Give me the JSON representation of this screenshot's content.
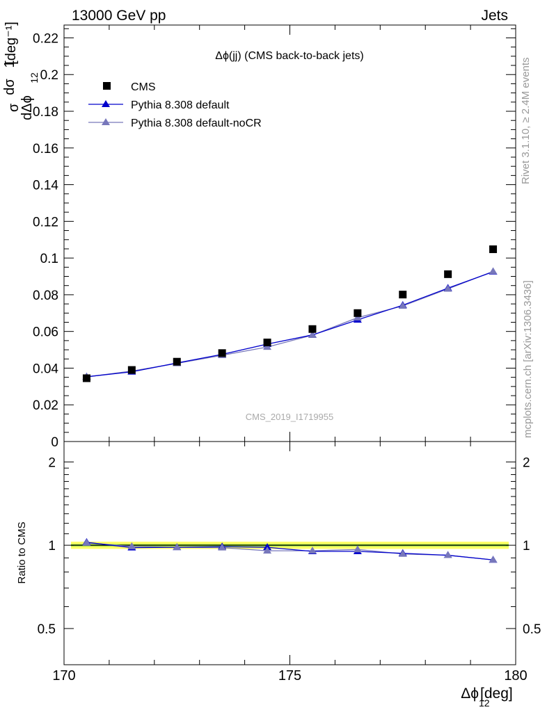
{
  "header": {
    "left": "13000 GeV pp",
    "right": "Jets"
  },
  "side_labels": {
    "rivet": "Rivet 3.1.10, ≥ 2.4M events",
    "mcplots": "mcplots.cern.ch [arXiv:1306.3436]"
  },
  "colors": {
    "cms": "#000000",
    "pythia_default": "#0000cc",
    "pythia_nocr": "#7777bb",
    "band_yellow": "#ffff66",
    "band_green": "#99dd44"
  },
  "chart_data": [
    {
      "type": "scatter",
      "title": "Δϕ(jj) (CMS back-to-back jets)",
      "watermark": "CMS_2019_I1719955",
      "ylabel": "1/σ dσ/dΔϕ₁₂ [deg⁻¹]",
      "xlim": [
        170,
        180
      ],
      "ylim": [
        0,
        0.227
      ],
      "yticks": [
        "0",
        "0.02",
        "0.04",
        "0.06",
        "0.08",
        "0.1",
        "0.12",
        "0.14",
        "0.16",
        "0.18",
        "0.2",
        "0.22"
      ],
      "x": [
        170.5,
        171.5,
        172.5,
        173.5,
        174.5,
        175.5,
        176.5,
        177.5,
        178.5,
        179.5
      ],
      "legend_placement": "top-left",
      "series": [
        {
          "name": "CMS",
          "marker": "square",
          "values": [
            0.0345,
            0.039,
            0.0435,
            0.0482,
            0.054,
            0.0613,
            0.07,
            0.0801,
            0.0912,
            0.1048
          ]
        },
        {
          "name": "Pythia 8.308 default",
          "marker": "triangle",
          "values": [
            0.0353,
            0.038,
            0.0428,
            0.0475,
            0.0531,
            0.0581,
            0.0663,
            0.0743,
            0.0836,
            0.0925
          ]
        },
        {
          "name": "Pythia 8.308 default-noCR",
          "marker": "triangle",
          "values": [
            0.0352,
            0.0384,
            0.0426,
            0.047,
            0.0515,
            0.058,
            0.0675,
            0.0739,
            0.0832,
            0.0927
          ]
        }
      ]
    },
    {
      "type": "line",
      "ylabel": "Ratio to CMS",
      "xlabel": "Δϕ₁₂ [deg]",
      "xlim": [
        170,
        180
      ],
      "ylim": [
        0.37,
        2.37
      ],
      "xticks": [
        "170",
        "175",
        "180"
      ],
      "yticks": [
        "0.5",
        "1",
        "2"
      ],
      "x": [
        170.5,
        171.5,
        172.5,
        173.5,
        174.5,
        175.5,
        176.5,
        177.5,
        178.5,
        179.5
      ],
      "band": {
        "yellow": [
          0.97,
          1.03
        ],
        "green": [
          0.99,
          1.01
        ]
      },
      "series": [
        {
          "name": "Pythia 8.308 default",
          "marker": "triangle",
          "values": [
            1.025,
            0.98,
            0.983,
            0.988,
            0.983,
            0.95,
            0.95,
            0.935,
            0.92,
            0.885
          ]
        },
        {
          "name": "Pythia 8.308 default-noCR",
          "marker": "triangle",
          "values": [
            1.02,
            0.99,
            0.982,
            0.98,
            0.955,
            0.955,
            0.965,
            0.93,
            0.92,
            0.885
          ]
        }
      ]
    }
  ]
}
